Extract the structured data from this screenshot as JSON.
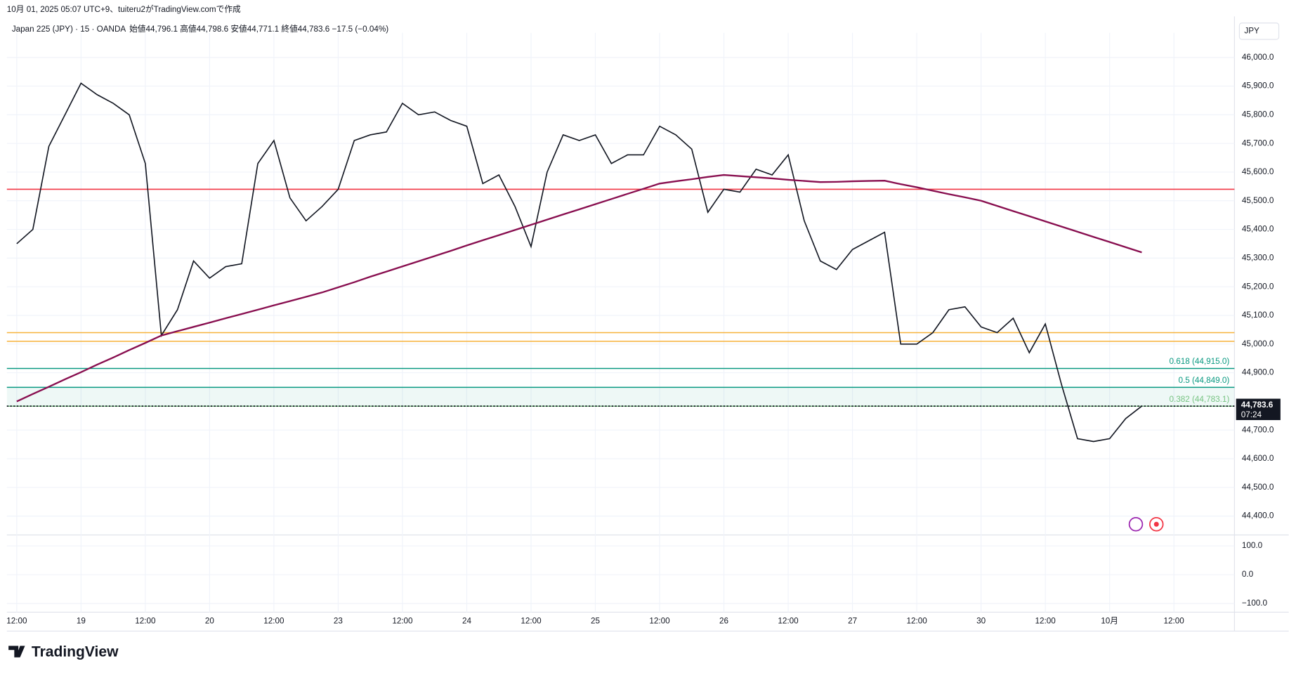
{
  "header": {
    "created": "10月 01, 2025 05:07 UTC+9、tuiteru2がTradingView.comで作成",
    "symbol": "Japan 225 (JPY) · 15 · OANDA",
    "ohlc": "始値44,796.1 高値44,798.6 安値44,771.1 終値44,783.6 −17.5 (−0.04%)",
    "currency": "JPY",
    "brand": "TradingView"
  },
  "chart_data": {
    "type": "line",
    "categories": [
      "12:00",
      null,
      null,
      null,
      "19",
      null,
      null,
      null,
      "12:00",
      null,
      null,
      null,
      "20",
      null,
      null,
      null,
      "12:00",
      null,
      null,
      null,
      "23",
      null,
      null,
      null,
      "12:00",
      null,
      null,
      null,
      "24",
      null,
      null,
      null,
      "12:00",
      null,
      null,
      null,
      "25",
      null,
      null,
      null,
      "12:00",
      null,
      null,
      null,
      "26",
      null,
      null,
      null,
      "12:00",
      null,
      null,
      null,
      "27",
      null,
      null,
      null,
      "12:00",
      null,
      null,
      null,
      "30",
      null,
      null,
      null,
      "12:00",
      null,
      null,
      null,
      "10月",
      null,
      null,
      null,
      "12:00"
    ],
    "series": [
      {
        "color": "#131722",
        "values": [
          45350,
          45400,
          45690,
          45800,
          45910,
          45870,
          45840,
          45800,
          45630,
          45030,
          45120,
          45290,
          45230,
          45270,
          45280,
          45630,
          45710,
          45510,
          45430,
          45480,
          45540,
          45710,
          45730,
          45740,
          45840,
          45800,
          45810,
          45780,
          45760,
          45560,
          45590,
          45480,
          45340,
          45600,
          45730,
          45710,
          45730,
          45630,
          45660,
          45660,
          45760,
          45730,
          45680,
          45460,
          45540,
          45530,
          45610,
          45590,
          45660,
          45430,
          45290,
          45260,
          45330,
          45360,
          45390,
          45000,
          45000,
          45040,
          45120,
          45130,
          45060,
          45040,
          45090,
          44970,
          45070,
          44860,
          44670,
          44660,
          44670,
          44740,
          44783.6,
          null,
          null
        ]
      },
      {
        "color": "#880e4f",
        "values": [
          44800,
          44826,
          44851,
          44877,
          44902,
          44928,
          44953,
          44979,
          45004,
          45030,
          45045,
          45060,
          45075,
          45090,
          45105,
          45120,
          45135,
          45150,
          45165,
          45180,
          45198,
          45216,
          45235,
          45253,
          45271,
          45289,
          45307,
          45325,
          45344,
          45362,
          45380,
          45398,
          45416,
          45434,
          45452,
          45470,
          45488,
          45506,
          45524,
          45542,
          45560,
          45568,
          45575,
          45583,
          45590,
          45586,
          45582,
          45578,
          45573,
          45569,
          45565,
          45566,
          45568,
          45569,
          45570,
          45558,
          45547,
          45535,
          45523,
          45512,
          45500,
          45482,
          45464,
          45446,
          45428,
          45410,
          45392,
          45374,
          45356,
          45338,
          45320,
          null,
          null
        ]
      }
    ],
    "ylim": [
      44337,
      46057
    ],
    "yticks": [
      {
        "value": 46000,
        "label": "46,000.0"
      },
      {
        "value": 45900,
        "label": "45,900.0"
      },
      {
        "value": 45800,
        "label": "45,800.0"
      },
      {
        "value": 45700,
        "label": "45,700.0"
      },
      {
        "value": 45600,
        "label": "45,600.0"
      },
      {
        "value": 45500,
        "label": "45,500.0"
      },
      {
        "value": 45400,
        "label": "45,400.0"
      },
      {
        "value": 45300,
        "label": "45,300.0"
      },
      {
        "value": 45200,
        "label": "45,200.0"
      },
      {
        "value": 45100,
        "label": "45,100.0"
      },
      {
        "value": 45000,
        "label": "45,000.0"
      },
      {
        "value": 44900,
        "label": "44,900.0"
      },
      {
        "value": 44700,
        "label": "44,700.0"
      },
      {
        "value": 44600,
        "label": "44,600.0"
      },
      {
        "value": 44500,
        "label": "44,500.0"
      },
      {
        "value": 44400,
        "label": "44,400.0"
      }
    ],
    "y2lim": [
      -130,
      135
    ],
    "y2ticks": [
      {
        "value": 100,
        "label": "100.0"
      },
      {
        "value": 0,
        "label": "0.0"
      },
      {
        "value": -100,
        "label": "−100.0"
      }
    ],
    "levels": [
      {
        "value": 45540,
        "color": "#f23645"
      },
      {
        "value": 45040,
        "color": "#f7b23b"
      },
      {
        "value": 45010,
        "color": "#f7b23b"
      },
      {
        "value": 44915,
        "color": "#089981",
        "label": "0.618 (44,915.0)"
      },
      {
        "value": 44849,
        "color": "#089981",
        "label": "0.5 (44,849.0)"
      },
      {
        "value": 44783.1,
        "color": "#81c784",
        "label": "0.382 (44,783.1)"
      }
    ],
    "last": {
      "value": 44783.6,
      "label": "44,783.6",
      "countdown": "07:24"
    },
    "grid": true
  }
}
